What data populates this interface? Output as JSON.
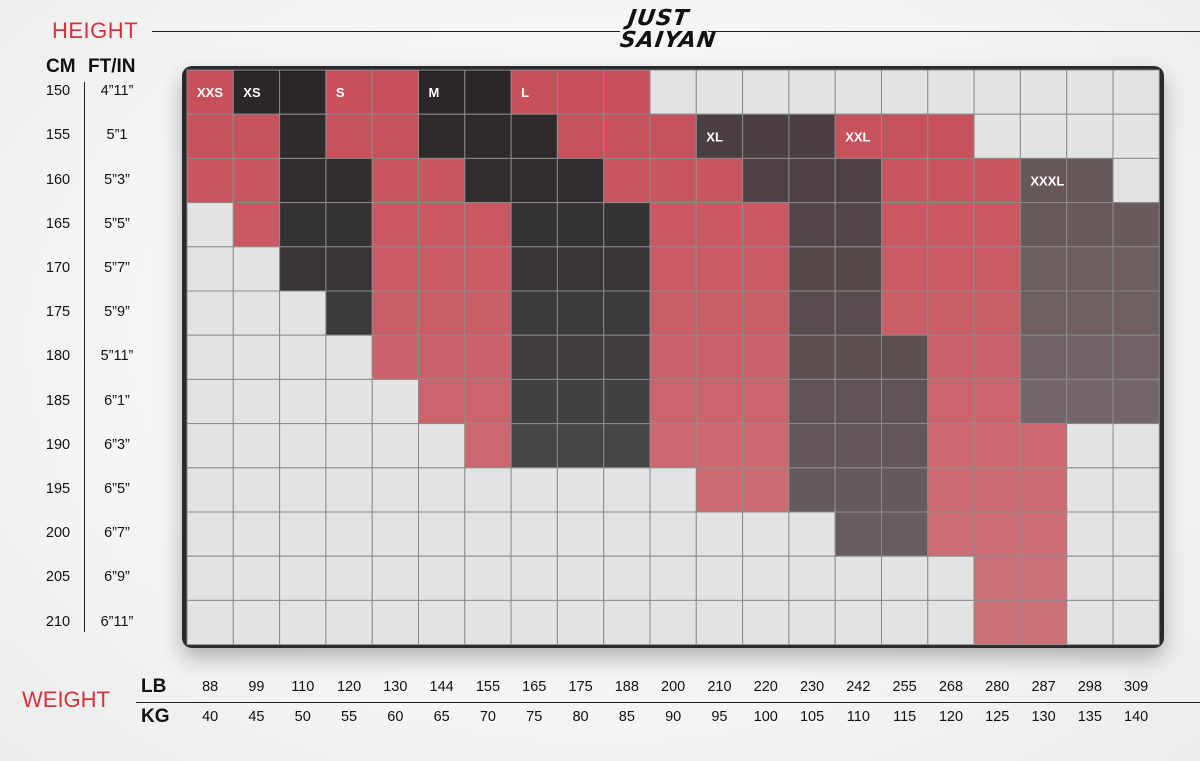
{
  "header": {
    "height_title": "HEIGHT",
    "cm_label": "CM",
    "ftin_label": "FT/IN",
    "weight_title": "WEIGHT",
    "lb_label": "LB",
    "kg_label": "KG"
  },
  "brand": {
    "line1": "JUST",
    "line2": "SAIYAN"
  },
  "colors": {
    "accent": "#d6323a",
    "light": "#e3e3e3",
    "grid_line": "#8a8a8a"
  },
  "chart_data": {
    "type": "heatmap",
    "title": "Size chart",
    "ylabel": "HEIGHT",
    "xlabel": "WEIGHT",
    "heights_cm": [
      150,
      155,
      160,
      165,
      170,
      175,
      180,
      185,
      190,
      195,
      200,
      205,
      210
    ],
    "heights_ftin": [
      "4”11”",
      "5”1",
      "5”3”",
      "5”5”",
      "5”7”",
      "5”9”",
      "5”11”",
      "6”1”",
      "6”3”",
      "6”5”",
      "6”7”",
      "6”9”",
      "6”11”"
    ],
    "weights_lb": [
      "88",
      "99",
      "110",
      "120",
      "130",
      "144",
      "155",
      "165",
      "175",
      "188",
      "200",
      "210",
      "220",
      "230",
      "242",
      "255",
      "268",
      "280",
      "287",
      "298",
      "309"
    ],
    "weights_kg": [
      "40",
      "45",
      "50",
      "55",
      "60",
      "65",
      "70",
      "75",
      "80",
      "85",
      "90",
      "95",
      "100",
      "105",
      "110",
      "115",
      "120",
      "125",
      "130",
      "135",
      "140"
    ],
    "sizes": [
      "XXS",
      "XS",
      "S",
      "M",
      "L",
      "XL",
      "XXL",
      "XXXL"
    ],
    "size_colors": [
      "#c8505a",
      "#2b2728",
      "#c8505a",
      "#2b2728",
      "#c8505a",
      "#4a3c3e",
      "#c8505a",
      "#625254"
    ],
    "size_label_cells": [
      [
        0,
        0
      ],
      [
        0,
        1
      ],
      [
        0,
        3
      ],
      [
        0,
        5
      ],
      [
        0,
        7
      ],
      [
        1,
        11
      ],
      [
        1,
        14
      ],
      [
        2,
        18
      ]
    ],
    "grid": [
      [
        0,
        1,
        1,
        2,
        2,
        3,
        3,
        4,
        4,
        4,
        -1,
        -1,
        -1,
        -1,
        -1,
        -1,
        -1,
        -1,
        -1,
        -1,
        -1
      ],
      [
        0,
        0,
        1,
        2,
        2,
        3,
        3,
        3,
        4,
        4,
        4,
        5,
        5,
        5,
        6,
        6,
        6,
        -1,
        -1,
        -1,
        -1
      ],
      [
        0,
        0,
        1,
        1,
        2,
        2,
        3,
        3,
        3,
        4,
        4,
        4,
        5,
        5,
        5,
        6,
        6,
        6,
        7,
        7,
        -1
      ],
      [
        -1,
        0,
        1,
        1,
        2,
        2,
        2,
        3,
        3,
        3,
        4,
        4,
        4,
        5,
        5,
        6,
        6,
        6,
        7,
        7,
        7
      ],
      [
        -1,
        -1,
        1,
        1,
        2,
        2,
        2,
        3,
        3,
        3,
        4,
        4,
        4,
        5,
        5,
        6,
        6,
        6,
        7,
        7,
        7
      ],
      [
        -1,
        -1,
        -1,
        1,
        2,
        2,
        2,
        3,
        3,
        3,
        4,
        4,
        4,
        5,
        5,
        6,
        6,
        6,
        7,
        7,
        7
      ],
      [
        -1,
        -1,
        -1,
        -1,
        2,
        2,
        2,
        3,
        3,
        3,
        4,
        4,
        4,
        5,
        5,
        5,
        6,
        6,
        7,
        7,
        7
      ],
      [
        -1,
        -1,
        -1,
        -1,
        -1,
        2,
        2,
        3,
        3,
        3,
        4,
        4,
        4,
        5,
        5,
        5,
        6,
        6,
        7,
        7,
        7
      ],
      [
        -1,
        -1,
        -1,
        -1,
        -1,
        -1,
        2,
        3,
        3,
        3,
        4,
        4,
        4,
        5,
        5,
        5,
        6,
        6,
        6,
        -1,
        -1
      ],
      [
        -1,
        -1,
        -1,
        -1,
        -1,
        -1,
        -1,
        -1,
        -1,
        -1,
        -1,
        4,
        4,
        5,
        5,
        5,
        6,
        6,
        6,
        -1,
        -1
      ],
      [
        -1,
        -1,
        -1,
        -1,
        -1,
        -1,
        -1,
        -1,
        -1,
        -1,
        -1,
        -1,
        -1,
        -1,
        5,
        5,
        6,
        6,
        6,
        -1,
        -1
      ],
      [
        -1,
        -1,
        -1,
        -1,
        -1,
        -1,
        -1,
        -1,
        -1,
        -1,
        -1,
        -1,
        -1,
        -1,
        -1,
        -1,
        -1,
        6,
        6,
        -1,
        -1
      ],
      [
        -1,
        -1,
        -1,
        -1,
        -1,
        -1,
        -1,
        -1,
        -1,
        -1,
        -1,
        -1,
        -1,
        -1,
        -1,
        -1,
        -1,
        6,
        6,
        -1,
        -1
      ]
    ]
  }
}
